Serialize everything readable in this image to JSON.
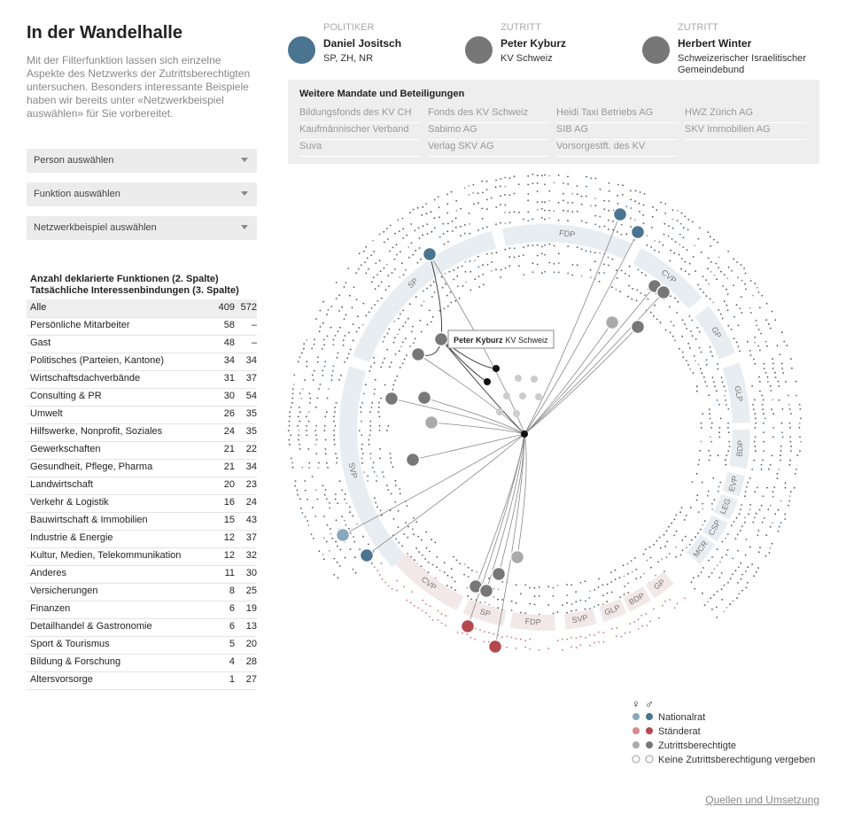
{
  "header": {
    "title": "In der Wandelhalle",
    "intro": "Mit der Filterfunktion lassen sich einzelne Aspekte des Netzwerks der Zutrittsberechtigten untersuchen. Besonders interessante Beispiele haben wir bereits unter «Netzwerkbeispiel auswählen» für Sie vorbereitet."
  },
  "filters": [
    "Person auswählen",
    "Funktion auswählen",
    "Netzwerkbeispiel auswählen"
  ],
  "table": {
    "heading": [
      "Anzahl deklarierte Funktionen (2. Spalte)",
      "Tatsächliche Interessenbindungen (3. Spalte)"
    ],
    "rows": [
      [
        "Alle",
        409,
        572
      ],
      [
        "Persönliche Mitarbeiter",
        58,
        "–"
      ],
      [
        "Gast",
        48,
        "–"
      ],
      [
        "Politisches (Parteien, Kantone)",
        34,
        34
      ],
      [
        "Wirtschaftsdachverbände",
        31,
        37
      ],
      [
        "Consulting & PR",
        30,
        54
      ],
      [
        "Umwelt",
        26,
        35
      ],
      [
        "Hilfswerke, Nonprofit, Soziales",
        24,
        35
      ],
      [
        "Gewerkschaften",
        21,
        22
      ],
      [
        "Gesundheit, Pflege, Pharma",
        21,
        34
      ],
      [
        "Landwirtschaft",
        20,
        23
      ],
      [
        "Verkehr & Logistik",
        16,
        24
      ],
      [
        "Bauwirtschaft & Immobilien",
        15,
        43
      ],
      [
        "Industrie & Energie",
        12,
        37
      ],
      [
        "Kultur, Medien, Telekommunikation",
        12,
        32
      ],
      [
        "Anderes",
        11,
        30
      ],
      [
        "Versicherungen",
        8,
        25
      ],
      [
        "Finanzen",
        6,
        19
      ],
      [
        "Detailhandel & Gastronomie",
        6,
        13
      ],
      [
        "Sport & Tourismus",
        5,
        20
      ],
      [
        "Bildung & Forschung",
        4,
        28
      ],
      [
        "Altersvorsorge",
        1,
        27
      ]
    ]
  },
  "people": [
    {
      "role": "POLITIKER",
      "name": "Daniel Jositsch",
      "detail": "SP, ZH, NR"
    },
    {
      "role": "ZUTRITT",
      "name": "Peter Kyburz",
      "detail": "KV Schweiz"
    },
    {
      "role": "ZUTRITT",
      "name": "Herbert Winter",
      "detail": "Schweizerischer Israelitischer Gemeindebund"
    }
  ],
  "mandates": {
    "title": "Weitere Mandate und Beteiligungen",
    "items": [
      "Bildungsfonds des KV CH",
      "Fonds des KV Schweiz",
      "Heidi Taxi Betriebs AG",
      "HWZ Zürich AG",
      "Kaufmännischer Verband",
      "Sabimo AG",
      "SIB AG",
      "SKV Immobilien AG",
      "Suva",
      "Verlag SKV AG",
      "Vorsorgestft. des KV"
    ]
  },
  "network": {
    "nationalrat_parties": [
      "SVP",
      "SP",
      "FDP",
      "CVP",
      "GP",
      "GLP",
      "BDP",
      "EVP",
      "LEG",
      "CSP",
      "MCR"
    ],
    "staenderat_parties": [
      "CVP",
      "SP",
      "FDP",
      "SVP",
      "GLP",
      "BDP",
      "GP"
    ],
    "tooltip": {
      "name": "Peter Kyburz",
      "org": "KV Schweiz"
    }
  },
  "legend": {
    "symbols": [
      "♀",
      "♂"
    ],
    "items": [
      "Nationalrat",
      "Ständerat",
      "Zutrittsberechtigte",
      "Keine Zutrittsberechtigung vergeben"
    ]
  },
  "footer_link": "Quellen und Umsetzung"
}
